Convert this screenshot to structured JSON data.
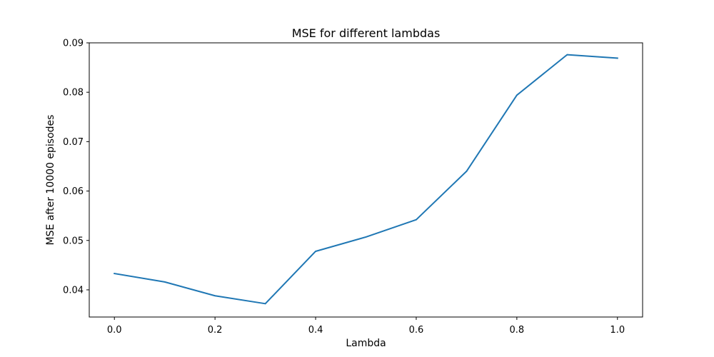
{
  "chart_data": {
    "type": "line",
    "title": "MSE for different lambdas",
    "xlabel": "Lambda",
    "ylabel": "MSE after 10000 episodes",
    "x": [
      0.0,
      0.1,
      0.2,
      0.3,
      0.4,
      0.5,
      0.6,
      0.7,
      0.8,
      0.9,
      1.0
    ],
    "series": [
      {
        "values": [
          0.0433,
          0.0416,
          0.0388,
          0.0372,
          0.0478,
          0.0507,
          0.0542,
          0.064,
          0.0794,
          0.0876,
          0.0869
        ],
        "color": "#1f77b4"
      }
    ],
    "xlim": [
      -0.05,
      1.05
    ],
    "ylim": [
      0.0345,
      0.09
    ],
    "xticks": [
      0.0,
      0.2,
      0.4,
      0.6,
      0.8,
      1.0
    ],
    "xtick_labels": [
      "0.0",
      "0.2",
      "0.4",
      "0.6",
      "0.8",
      "1.0"
    ],
    "yticks": [
      0.04,
      0.05,
      0.06,
      0.07,
      0.08,
      0.09
    ],
    "ytick_labels": [
      "0.04",
      "0.05",
      "0.06",
      "0.07",
      "0.08",
      "0.09"
    ],
    "grid": false,
    "legend": false
  }
}
